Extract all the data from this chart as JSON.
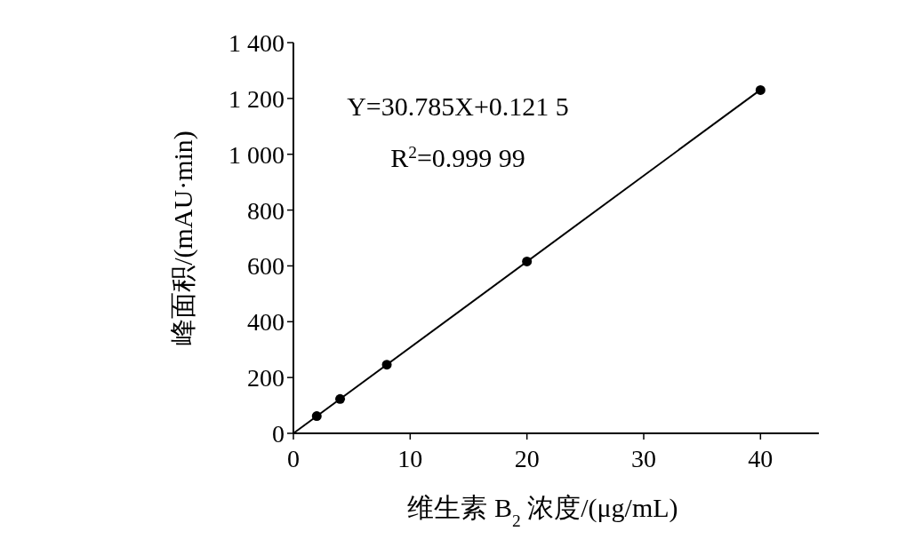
{
  "chart_data": {
    "type": "scatter",
    "xlabel": "维生素 B$_{2}$ 浓度/(μg/mL)",
    "ylabel": "峰面积/(mAU·min)",
    "xlim": [
      0,
      45
    ],
    "xticks": [
      0,
      10,
      20,
      30,
      40
    ],
    "ylim": [
      0,
      1400
    ],
    "yticks": [
      0,
      200,
      400,
      600,
      800,
      {
        "value": 1000,
        "label": "1 000"
      },
      {
        "value": 1200,
        "label": "1 200"
      },
      {
        "value": 1400,
        "label": "1 400"
      }
    ],
    "grid": false,
    "series": [
      {
        "type": "scatter",
        "color": "#000000",
        "marker": "circle",
        "x": [
          2,
          4,
          8,
          20,
          40
        ],
        "values": [
          62,
          123,
          246,
          616,
          1230
        ]
      },
      {
        "type": "line",
        "color": "#000000",
        "marker": "none",
        "line_style": "solid",
        "x": [
          0,
          40
        ],
        "values": [
          0,
          1231
        ]
      }
    ],
    "annotations": [
      "Y=30.785X+0.121 5",
      "R$^{2}$=0.999 99"
    ]
  }
}
